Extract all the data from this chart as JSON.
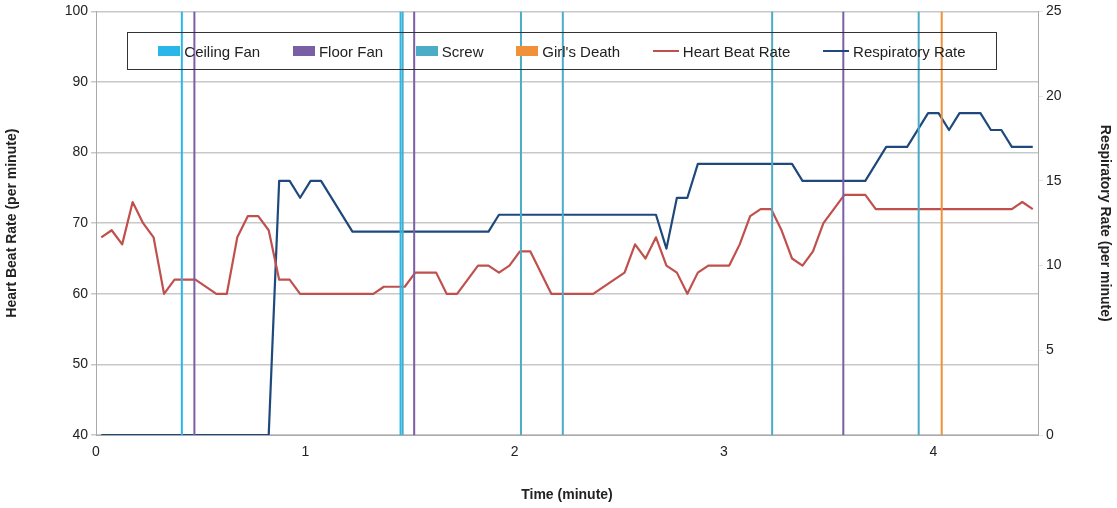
{
  "chart_data": {
    "type": "line",
    "xlabel": "Time (minute)",
    "ylabel": "Heart Beat Rate (per minute)",
    "y2label": "Respiratory Rate (per minute)",
    "xlim": [
      0,
      4.5
    ],
    "xticks": [
      0,
      1,
      2,
      3,
      4
    ],
    "ylim": [
      40,
      100
    ],
    "yticks": [
      40,
      50,
      60,
      70,
      80,
      90,
      100
    ],
    "y2lim": [
      0,
      25
    ],
    "y2ticks": [
      0,
      5,
      10,
      15,
      20,
      25
    ],
    "grid": "y",
    "legend": "top",
    "marker": "none",
    "line_style": "solid",
    "series": [
      {
        "name": "Ceiling Fan",
        "color": "#29b6e8",
        "x": [
          0.41,
          0.41,
          null,
          1.455,
          1.455
        ],
        "values": [
          40,
          100,
          null,
          40,
          100
        ]
      },
      {
        "name": "Floor Fan",
        "color": "#7b5fa5",
        "x": [
          0.47,
          0.47,
          null,
          1.52,
          1.52,
          null,
          3.57,
          3.57
        ],
        "values": [
          40,
          100,
          null,
          40,
          100,
          null,
          40,
          100
        ]
      },
      {
        "name": "Screw",
        "color": "#4bacc6",
        "x": [
          1.465,
          1.465,
          null,
          2.03,
          2.03,
          null,
          2.23,
          2.23,
          null,
          3.23,
          3.23,
          null,
          3.93,
          3.93
        ],
        "values": [
          40,
          100,
          null,
          40,
          100,
          null,
          40,
          100,
          null,
          40,
          100,
          null,
          40,
          100
        ]
      },
      {
        "name": "Girl's Death",
        "color": "#f0913a",
        "x": [
          4.04,
          4.04
        ],
        "values": [
          40,
          100
        ]
      },
      {
        "name": "Heart Beat Rate",
        "color": "#c0504d",
        "x": [
          0.025,
          0.075,
          0.125,
          0.175,
          0.225,
          0.275,
          0.325,
          0.375,
          0.475,
          0.575,
          0.625,
          0.675,
          0.725,
          0.775,
          0.825,
          0.875,
          0.925,
          0.975,
          1.325,
          1.375,
          1.475,
          1.525,
          1.625,
          1.675,
          1.725,
          1.825,
          1.875,
          1.925,
          1.975,
          2.025,
          2.075,
          2.175,
          2.375,
          2.525,
          2.575,
          2.625,
          2.675,
          2.725,
          2.775,
          2.825,
          2.875,
          2.925,
          3.025,
          3.075,
          3.125,
          3.175,
          3.225,
          3.275,
          3.325,
          3.375,
          3.425,
          3.475,
          3.575,
          3.675,
          3.725,
          4.375,
          4.425,
          4.475
        ],
        "values": [
          68,
          69,
          67,
          73,
          70,
          68,
          60,
          62,
          62,
          60,
          60,
          68,
          71,
          71,
          69,
          62,
          62,
          60,
          60,
          61,
          61,
          63,
          63,
          60,
          60,
          64,
          64,
          63,
          64,
          66,
          66,
          60,
          60,
          63,
          67,
          65,
          68,
          64,
          63,
          60,
          63,
          64,
          64,
          67,
          71,
          72,
          72,
          69,
          65,
          64,
          66,
          70,
          74,
          74,
          72,
          72,
          73,
          72
        ]
      },
      {
        "name": "Respiratory Rate",
        "color": "#1f497d",
        "axis": "y2",
        "x": [
          0.025,
          0.825,
          0.875,
          0.925,
          0.975,
          1.025,
          1.075,
          1.225,
          1.875,
          1.925,
          2.675,
          2.725,
          2.775,
          2.825,
          2.875,
          3.325,
          3.375,
          3.675,
          3.775,
          3.875,
          3.975,
          4.025,
          4.075,
          4.125,
          4.225,
          4.275,
          4.325,
          4.375,
          4.475
        ],
        "values": [
          0,
          0,
          15,
          15,
          14,
          15,
          15,
          12,
          12,
          13,
          13,
          11,
          14,
          14,
          16,
          16,
          15,
          15,
          17,
          17,
          19,
          19,
          18,
          19,
          19,
          18,
          18,
          17,
          17
        ]
      }
    ]
  }
}
